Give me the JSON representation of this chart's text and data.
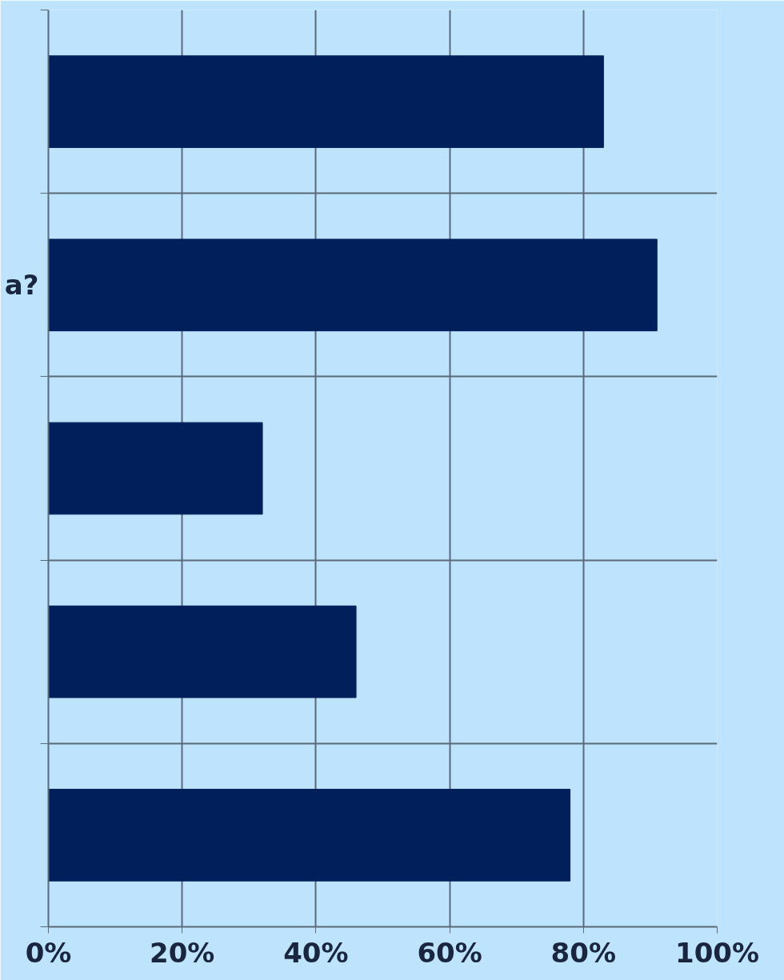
{
  "chart_data": {
    "type": "bar",
    "orientation": "horizontal",
    "categories": [
      null,
      "a?",
      null,
      null,
      null
    ],
    "values": [
      83,
      91,
      32,
      46,
      78
    ],
    "color": "#001f5b",
    "xlim": [
      0,
      100
    ],
    "xticks": [
      {
        "value": 0,
        "label": "0%"
      },
      {
        "value": 20,
        "label": "20%"
      },
      {
        "value": 40,
        "label": "40%"
      },
      {
        "value": 60,
        "label": "60%"
      },
      {
        "value": 80,
        "label": "80%"
      },
      {
        "value": 100,
        "label": "100%"
      }
    ],
    "grid": true
  }
}
